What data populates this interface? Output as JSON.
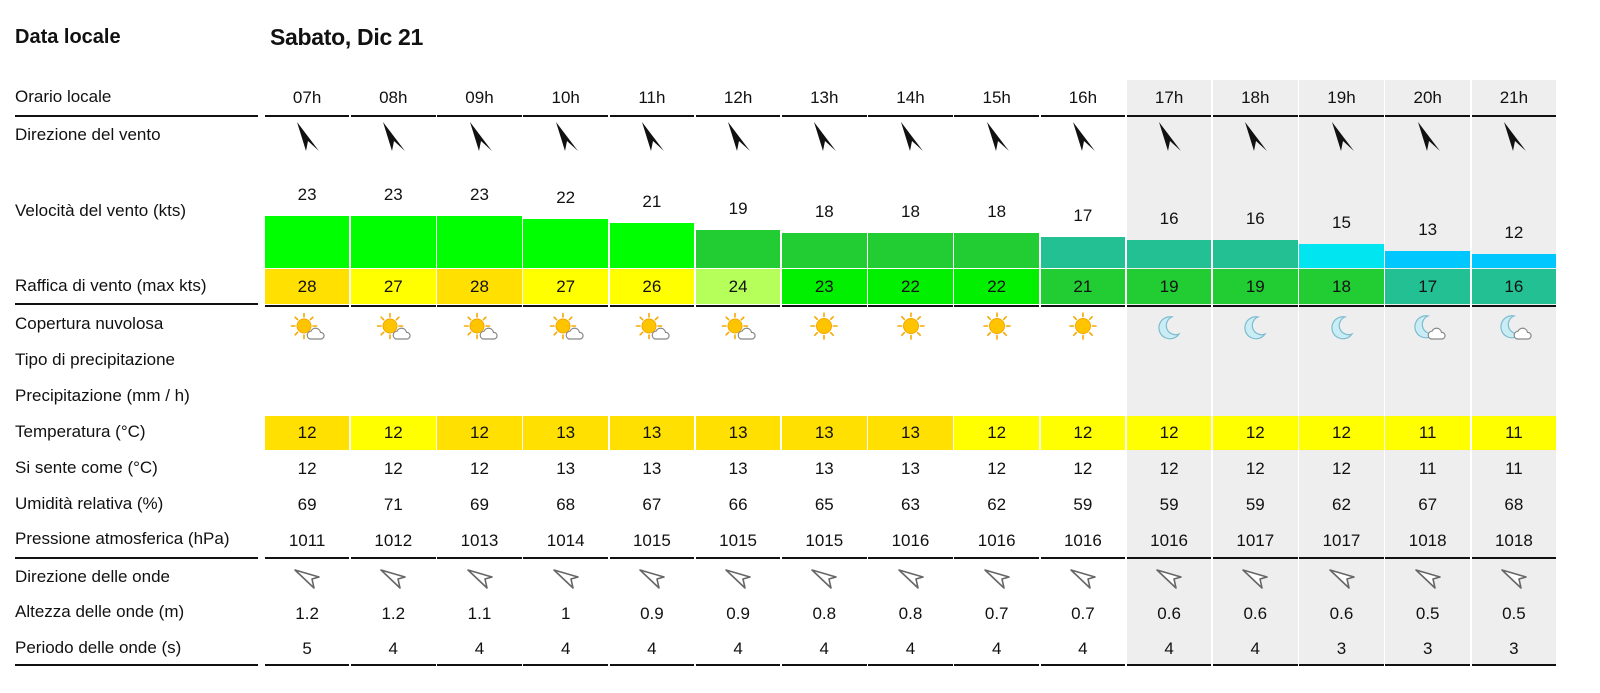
{
  "header": {
    "label": "Data locale",
    "date": "Sabato, Dic 21"
  },
  "row_labels": {
    "hours": "Orario locale",
    "wind_dir": "Direzione del vento",
    "wind_speed": "Velocità del vento (kts)",
    "gust": "Raffica di vento (max kts)",
    "cloud": "Copertura nuvolosa",
    "precip_type": "Tipo di precipitazione",
    "precip": "Precipitazione (mm / h)",
    "temp": "Temperatura (°C)",
    "feels": "Si sente come (°C)",
    "humidity": "Umidità relativa (%)",
    "pressure": "Pressione atmosferica (hPa)",
    "wave_dir": "Direzione delle onde",
    "wave_height": "Altezza delle onde (m)",
    "wave_period": "Periodo delle onde (s)"
  },
  "hours": [
    "07h",
    "08h",
    "09h",
    "10h",
    "11h",
    "12h",
    "13h",
    "14h",
    "15h",
    "16h",
    "17h",
    "18h",
    "19h",
    "20h",
    "21h"
  ],
  "night_from_index": 10,
  "wind_speed": [
    23,
    23,
    23,
    22,
    21,
    19,
    18,
    18,
    18,
    17,
    16,
    16,
    15,
    13,
    12
  ],
  "wind_speed_colors": [
    "#00ff00",
    "#00ff00",
    "#00ff00",
    "#00ff00",
    "#00ff00",
    "#22cc33",
    "#22cc33",
    "#22cc33",
    "#22cc33",
    "#22c093",
    "#22c093",
    "#22c093",
    "#00e5f0",
    "#00c8ff",
    "#00c8ff"
  ],
  "gust": [
    28,
    27,
    28,
    27,
    26,
    24,
    23,
    22,
    22,
    21,
    19,
    19,
    18,
    17,
    16
  ],
  "gust_colors": [
    "#ffe000",
    "#ffff00",
    "#ffe000",
    "#ffff00",
    "#ffff00",
    "#b6ff5a",
    "#00f000",
    "#00f000",
    "#00f000",
    "#22cc33",
    "#22cc33",
    "#22cc33",
    "#22cc33",
    "#22c093",
    "#22c093"
  ],
  "cloud_icons": [
    "sun-cloud",
    "sun-cloud",
    "sun-cloud",
    "sun-cloud",
    "sun-cloud",
    "sun-cloud",
    "sun",
    "sun",
    "sun",
    "sun",
    "moon",
    "moon",
    "moon",
    "moon-cloud",
    "moon-cloud"
  ],
  "temp": [
    12,
    12,
    12,
    13,
    13,
    13,
    13,
    13,
    12,
    12,
    12,
    12,
    12,
    11,
    11
  ],
  "temp_colors": [
    "#ffe000",
    "#ffff00",
    "#ffe000",
    "#ffe000",
    "#ffe000",
    "#ffe000",
    "#ffe000",
    "#ffe000",
    "#ffff00",
    "#ffff00",
    "#ffff00",
    "#ffff00",
    "#ffff00",
    "#ffff00",
    "#ffff00"
  ],
  "feels": [
    12,
    12,
    12,
    13,
    13,
    13,
    13,
    13,
    12,
    12,
    12,
    12,
    12,
    11,
    11
  ],
  "humidity": [
    69,
    71,
    69,
    68,
    67,
    66,
    65,
    63,
    62,
    59,
    59,
    59,
    62,
    67,
    68
  ],
  "pressure": [
    1011,
    1012,
    1013,
    1014,
    1015,
    1015,
    1015,
    1016,
    1016,
    1016,
    1016,
    1017,
    1017,
    1018,
    1018
  ],
  "wave_height": [
    "1.2",
    "1.2",
    "1.1",
    "1",
    "0.9",
    "0.9",
    "0.8",
    "0.8",
    "0.7",
    "0.7",
    "0.6",
    "0.6",
    "0.6",
    "0.5",
    "0.5"
  ],
  "wave_period": [
    5,
    4,
    4,
    4,
    4,
    4,
    4,
    4,
    4,
    4,
    4,
    4,
    3,
    3,
    3
  ],
  "icons": {
    "wind_arrow": "wind-direction-arrow-icon",
    "wave_arrow": "wave-direction-arrow-icon"
  }
}
